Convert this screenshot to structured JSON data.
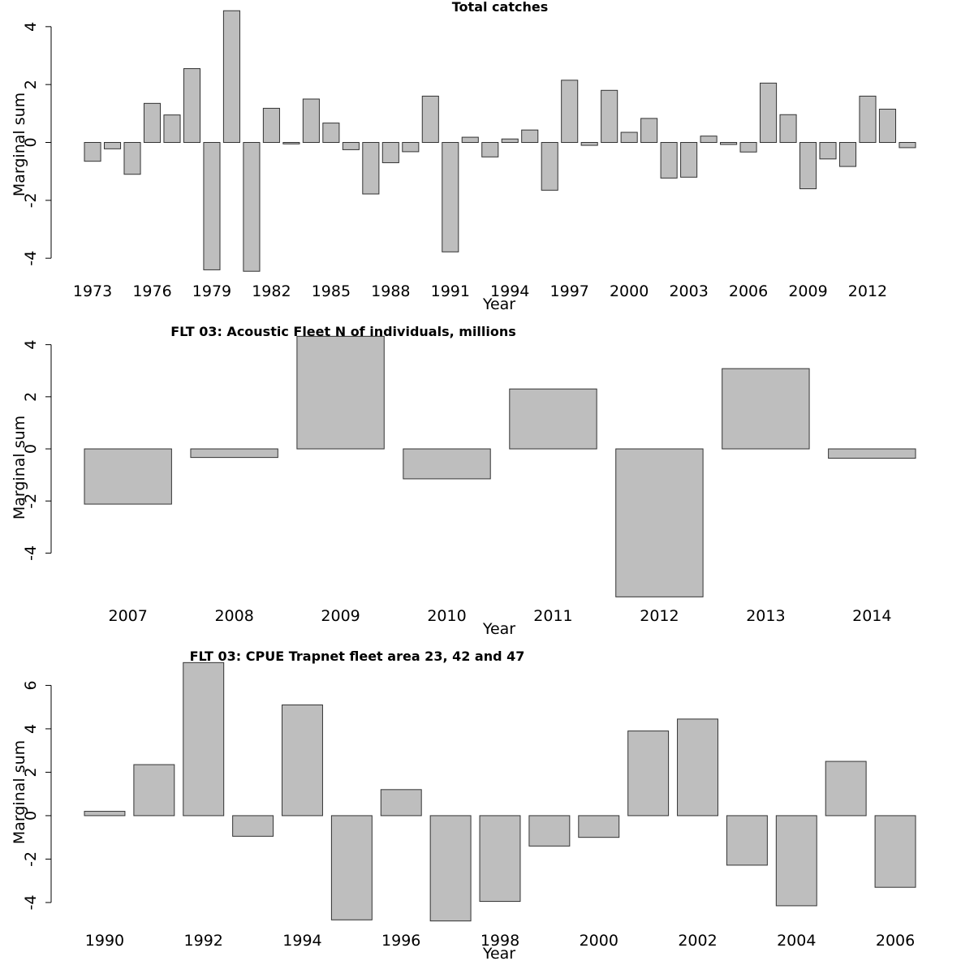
{
  "chart_data": [
    {
      "type": "bar",
      "title": "Total catches",
      "xlabel": "Year",
      "ylabel": "Marginal sum",
      "ylim": [
        -4.5,
        4.5
      ],
      "yticks": [
        -4,
        -2,
        0,
        2,
        4
      ],
      "categories": [
        "1973",
        "1974",
        "1975",
        "1976",
        "1977",
        "1978",
        "1979",
        "1980",
        "1981",
        "1982",
        "1983",
        "1984",
        "1985",
        "1986",
        "1987",
        "1988",
        "1989",
        "1990",
        "1991",
        "1992",
        "1993",
        "1994",
        "1995",
        "1996",
        "1997",
        "1998",
        "1999",
        "2000",
        "2001",
        "2002",
        "2003",
        "2004",
        "2005",
        "2006",
        "2007",
        "2008",
        "2009",
        "2010",
        "2011",
        "2012",
        "2013",
        "2014"
      ],
      "tick_categories": [
        "1973",
        "1976",
        "1979",
        "1982",
        "1985",
        "1988",
        "1991",
        "1994",
        "1997",
        "2000",
        "2003",
        "2006",
        "2009",
        "2012"
      ],
      "values": [
        -0.65,
        -0.22,
        -1.1,
        1.35,
        0.95,
        2.55,
        -4.4,
        4.55,
        -4.45,
        1.18,
        -0.05,
        1.5,
        0.67,
        -0.25,
        -1.78,
        -0.7,
        -0.32,
        1.6,
        -3.78,
        0.18,
        -0.5,
        0.12,
        0.43,
        -1.65,
        2.15,
        -0.1,
        1.8,
        0.35,
        0.83,
        -1.23,
        -1.2,
        0.22,
        -0.07,
        -0.33,
        2.05,
        0.96,
        -1.6,
        -0.57,
        -0.83,
        1.6,
        1.15,
        -0.18
      ]
    },
    {
      "type": "bar",
      "title": "FLT 03: Acoustic Fleet   N of individuals, millions",
      "xlabel": "Year",
      "ylabel": "Marginal sum",
      "ylim": [
        -5.7,
        4.3
      ],
      "yticks": [
        -4,
        -2,
        0,
        2,
        4
      ],
      "categories": [
        "2007",
        "2008",
        "2009",
        "2010",
        "2011",
        "2012",
        "2013",
        "2014"
      ],
      "tick_categories": [
        "2007",
        "2008",
        "2009",
        "2010",
        "2011",
        "2012",
        "2013",
        "2014"
      ],
      "values": [
        -2.12,
        -0.33,
        4.32,
        -1.15,
        2.3,
        -5.68,
        3.08,
        -0.36
      ]
    },
    {
      "type": "bar",
      "title": "FLT 03: CPUE Trapnet fleet area 23, 42 and 47",
      "xlabel": "Year",
      "ylabel": "Marginal sum",
      "ylim": [
        -4.9,
        7.1
      ],
      "yticks": [
        -4,
        -2,
        0,
        2,
        4,
        6
      ],
      "categories": [
        "1990",
        "1991",
        "1992",
        "1993",
        "1994",
        "1995",
        "1996",
        "1997",
        "1998",
        "1999",
        "2000",
        "2001",
        "2002",
        "2003",
        "2004",
        "2005",
        "2006"
      ],
      "tick_categories": [
        "1990",
        "1992",
        "1994",
        "1996",
        "1998",
        "2000",
        "2002",
        "2004",
        "2006"
      ],
      "values": [
        0.2,
        2.35,
        7.05,
        -0.95,
        5.1,
        -4.8,
        1.2,
        -4.85,
        -3.95,
        -1.4,
        -1.0,
        3.9,
        4.45,
        -2.28,
        -4.15,
        2.5,
        -3.3
      ]
    }
  ]
}
